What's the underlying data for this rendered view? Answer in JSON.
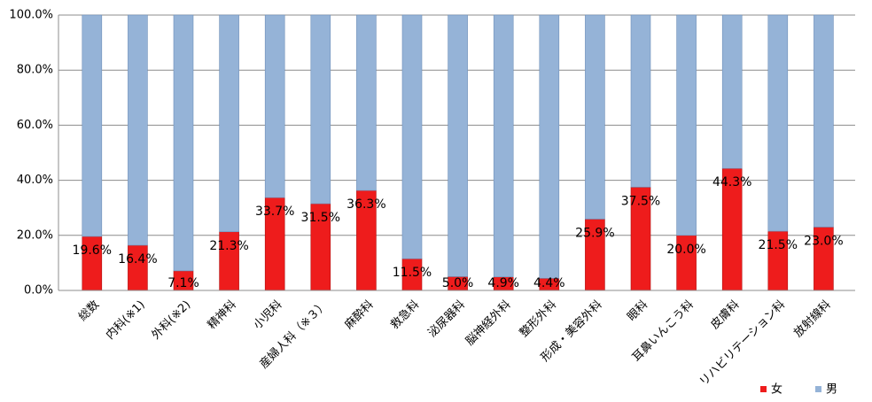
{
  "chart_data": {
    "type": "stacked_bar",
    "categories": [
      "総数",
      "内科(※1)",
      "外科(※2)",
      "精神科",
      "小児科",
      "産婦人科（※３）",
      "麻酔科",
      "救急科",
      "泌尿器科",
      "脳神経外科",
      "整形外科",
      "形成・美容外科",
      "眼科",
      "耳鼻いんこう科",
      "皮膚科",
      "リハビリテーション科",
      "放射線科"
    ],
    "series": [
      {
        "name": "女",
        "color": "#ee1c1c",
        "values": [
          19.6,
          16.4,
          7.1,
          21.3,
          33.7,
          31.5,
          36.3,
          11.5,
          5.0,
          4.9,
          4.4,
          25.9,
          37.5,
          20.0,
          44.3,
          21.5,
          23.0
        ],
        "value_labels": [
          "19.6%",
          "16.4%",
          "7.1%",
          "21.3%",
          "33.7%",
          "31.5%",
          "36.3%",
          "11.5%",
          "5.0%",
          "4.9%",
          "4.4%",
          "25.9%",
          "37.5%",
          "20.0%",
          "44.3%",
          "21.5%",
          "23.0%"
        ]
      },
      {
        "name": "男",
        "color": "#95b3d7",
        "values": [
          80.4,
          83.6,
          92.9,
          78.7,
          66.3,
          68.5,
          63.7,
          88.5,
          95.0,
          95.1,
          95.6,
          74.1,
          62.5,
          80.0,
          55.7,
          78.5,
          77.0
        ]
      }
    ],
    "ylim": [
      0,
      100
    ],
    "yticks": [
      {
        "value": 0,
        "label": "0.0%"
      },
      {
        "value": 20,
        "label": "20.0%"
      },
      {
        "value": 40,
        "label": "40.0%"
      },
      {
        "value": 60,
        "label": "60.0%"
      },
      {
        "value": 80,
        "label": "80.0%"
      },
      {
        "value": 100,
        "label": "100.0%"
      }
    ],
    "grid": true,
    "legend": "bottom-right"
  }
}
